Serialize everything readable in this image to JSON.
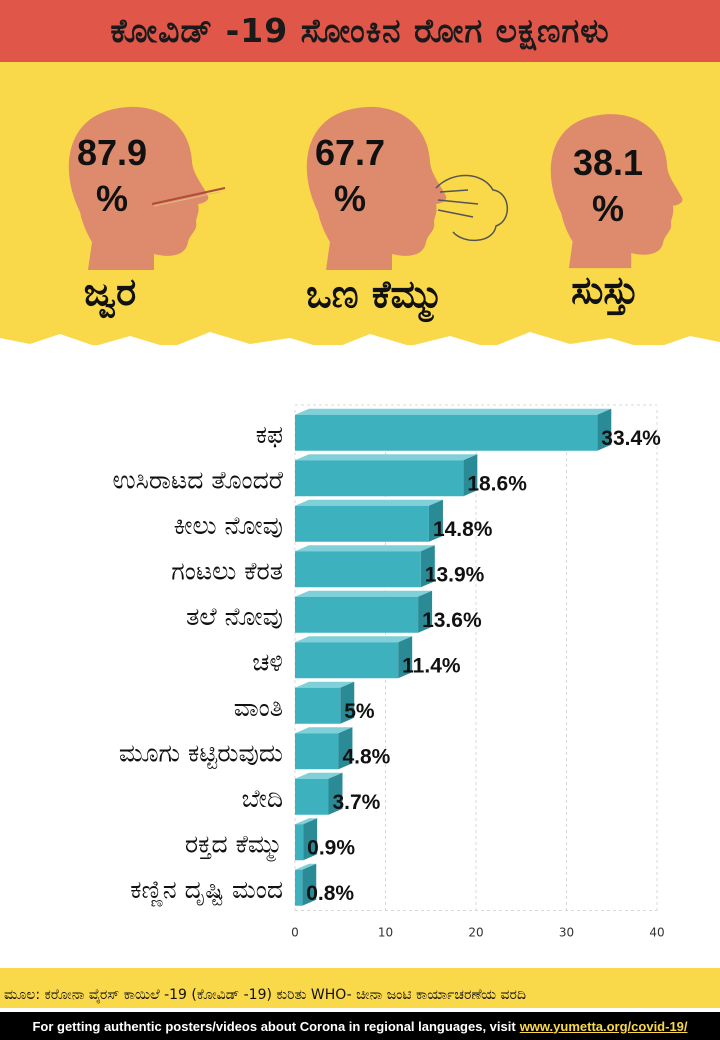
{
  "title": "ಕೋವಿಡ್ -19 ಸೋಂಕಿನ ರೋಗ ಲಕ್ಷಣಗಳು",
  "top_symptoms": [
    {
      "percent": "87.9",
      "unit": "%",
      "label": "ಜ್ವರ"
    },
    {
      "percent": "67.7",
      "unit": "%",
      "label": "ಒಣ ಕೆಮ್ಮು"
    },
    {
      "percent": "38.1",
      "unit": "%",
      "label": "ಸುಸ್ತು"
    }
  ],
  "chart_data": {
    "type": "bar",
    "orientation": "horizontal",
    "categories": [
      "ಕಫ",
      "ಉಸಿರಾಟದ ತೊಂದರೆ",
      "ಕೀಲು ನೋವು",
      "ಗಂಟಲು ಕೆರತ",
      "ತಲೆ ನೋವು",
      "ಚಳಿ",
      "ವಾಂತಿ",
      "ಮೂಗು ಕಟ್ಟಿರುವುದು",
      "ಬೇದಿ",
      "ರಕ್ತದ ಕೆಮ್ಮು",
      "ಕಣ್ಣಿನ ದೃಷ್ಟಿ ಮಂದ"
    ],
    "values": [
      33.4,
      18.6,
      14.8,
      13.9,
      13.6,
      11.4,
      5,
      4.8,
      3.7,
      0.9,
      0.8
    ],
    "data_labels": [
      "33.4%",
      "18.6%",
      "14.8%",
      "13.9%",
      "13.6%",
      "11.4%",
      "5%",
      "4.8%",
      "3.7%",
      "0.9%",
      "0.8%"
    ],
    "xlim": [
      0,
      40
    ],
    "xticks": [
      "0",
      "10",
      "20",
      "30",
      "40"
    ],
    "grid": true,
    "bar_color": "#3eb1bf"
  },
  "source": "ಮೂಲ: ಕರೋನಾ ವೈರಸ್ ಕಾಯಿಲೆ -19 (ಕೋವಿಡ್ -19) ಕುರಿತು WHO- ಚೀನಾ ಜಂಟಿ ಕಾರ್ಯಾಚರಣೆಯ ವರದಿ",
  "footer": {
    "text": "For getting authentic posters/videos about Corona in regional languages, visit",
    "link": "www.yumetta.org/covid-19/"
  },
  "colors": {
    "title_bar": "#e0574a",
    "band": "#f9d84a",
    "head": "#de8a6c"
  }
}
